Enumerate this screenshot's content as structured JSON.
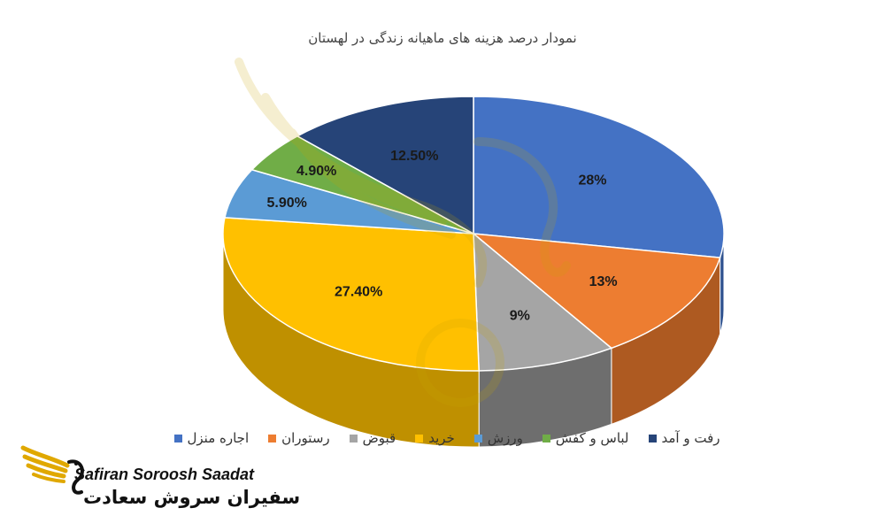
{
  "chart_data": {
    "type": "pie",
    "title": "نمودار درصد هزینه های ماهیانه زندگی در لهستان",
    "slices": [
      {
        "name": "اجاره منزل",
        "value": 28,
        "label": "28%",
        "color": "#4472C4",
        "side": "#2F528F"
      },
      {
        "name": "رستوران",
        "value": 13,
        "label": "13%",
        "color": "#ED7D31",
        "side": "#AE5A21"
      },
      {
        "name": "قبوض",
        "value": 9,
        "label": "9%",
        "color": "#A5A5A5",
        "side": "#6E6E6E"
      },
      {
        "name": "خرید",
        "value": 27.4,
        "label": "27.40%",
        "color": "#FFC000",
        "side": "#BF9000"
      },
      {
        "name": "ورزش",
        "value": 5.9,
        "label": "5.90%",
        "color": "#5B9BD5",
        "side": "#3C6E9E"
      },
      {
        "name": "لباس و کفش",
        "value": 4.9,
        "label": "4.90%",
        "color": "#70AD47",
        "side": "#4E7A30"
      },
      {
        "name": "رفت و آمد",
        "value": 12.5,
        "label": "12.50%",
        "color": "#264478",
        "side": "#172B4D"
      }
    ],
    "legend_position": "bottom"
  },
  "watermark": {
    "brand_latin": "Safiran Soroosh Saadat",
    "brand_persian": "سفیران سروش سعادت",
    "logo_icon": "swan-wing-icon"
  }
}
